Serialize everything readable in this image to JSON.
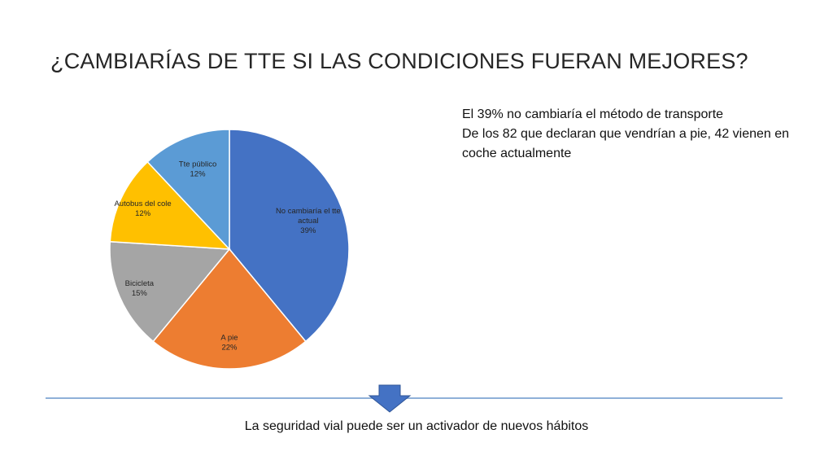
{
  "slide": {
    "title": "¿CAMBIARÍAS DE TTE SI LAS CONDICIONES FUERAN MEJORES?",
    "notes": [
      "El 39% no cambiaría el método de transporte",
      "De los 82 que declaran que vendrían a pie, 42 vienen en coche actualmente"
    ],
    "footer": "La seguridad vial puede ser un activador de nuevos hábitos"
  },
  "chart_data": {
    "type": "pie",
    "title": "",
    "slices": [
      {
        "label": [
          "No cambiaría el tte",
          "actual"
        ],
        "percent_label": "39%",
        "value": 39,
        "color": "#4472C4"
      },
      {
        "label": [
          "A pie"
        ],
        "percent_label": "22%",
        "value": 22,
        "color": "#ED7D31"
      },
      {
        "label": [
          "Bicicleta"
        ],
        "percent_label": "15%",
        "value": 15,
        "color": "#A5A5A5"
      },
      {
        "label": [
          "Autobus del cole"
        ],
        "percent_label": "12%",
        "value": 12,
        "color": "#FFC000"
      },
      {
        "label": [
          "Tte público"
        ],
        "percent_label": "12%",
        "value": 12,
        "color": "#5B9BD5"
      }
    ],
    "start": "12 o'clock",
    "direction": "clockwise"
  },
  "colors": {
    "divider": "#8fb0d8",
    "arrow": "#4472C4"
  }
}
